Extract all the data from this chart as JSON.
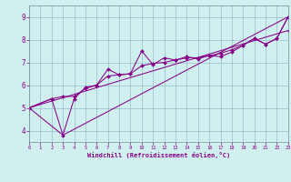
{
  "xlabel": "Windchill (Refroidissement éolien,°C)",
  "bg_color": "#cff0ee",
  "line_color": "#880088",
  "grid_color": "#99bbcc",
  "xlim": [
    0,
    23
  ],
  "ylim": [
    3.5,
    9.5
  ],
  "xticks": [
    0,
    1,
    2,
    3,
    4,
    5,
    6,
    7,
    8,
    9,
    10,
    11,
    12,
    13,
    14,
    15,
    16,
    17,
    18,
    19,
    20,
    21,
    22,
    23
  ],
  "yticks": [
    4,
    5,
    6,
    7,
    8,
    9
  ],
  "series1": [
    [
      0,
      5.0
    ],
    [
      2,
      5.4
    ],
    [
      3,
      3.8
    ],
    [
      4,
      5.4
    ],
    [
      5,
      5.9
    ],
    [
      6,
      6.0
    ],
    [
      7,
      6.7
    ],
    [
      8,
      6.45
    ],
    [
      9,
      6.5
    ],
    [
      10,
      7.5
    ],
    [
      11,
      6.9
    ],
    [
      12,
      7.2
    ],
    [
      13,
      7.1
    ],
    [
      14,
      7.25
    ],
    [
      15,
      7.15
    ],
    [
      16,
      7.3
    ],
    [
      17,
      7.25
    ],
    [
      18,
      7.45
    ],
    [
      19,
      7.75
    ],
    [
      20,
      8.05
    ],
    [
      21,
      7.8
    ],
    [
      22,
      8.05
    ],
    [
      23,
      9.0
    ]
  ],
  "series2": [
    [
      0,
      5.0
    ],
    [
      2,
      5.4
    ],
    [
      3,
      5.5
    ],
    [
      4,
      5.5
    ],
    [
      5,
      5.85
    ],
    [
      6,
      6.0
    ],
    [
      7,
      6.4
    ],
    [
      8,
      6.45
    ],
    [
      9,
      6.5
    ],
    [
      10,
      6.85
    ],
    [
      11,
      6.95
    ],
    [
      12,
      7.0
    ],
    [
      13,
      7.1
    ],
    [
      14,
      7.2
    ],
    [
      15,
      7.2
    ],
    [
      16,
      7.3
    ],
    [
      17,
      7.4
    ],
    [
      18,
      7.55
    ],
    [
      19,
      7.75
    ],
    [
      20,
      8.05
    ],
    [
      21,
      7.8
    ],
    [
      22,
      8.05
    ],
    [
      23,
      9.0
    ]
  ],
  "series3": [
    [
      0,
      5.0
    ],
    [
      23,
      8.4
    ]
  ],
  "series4": [
    [
      0,
      5.0
    ],
    [
      3,
      3.8
    ],
    [
      23,
      9.0
    ]
  ]
}
